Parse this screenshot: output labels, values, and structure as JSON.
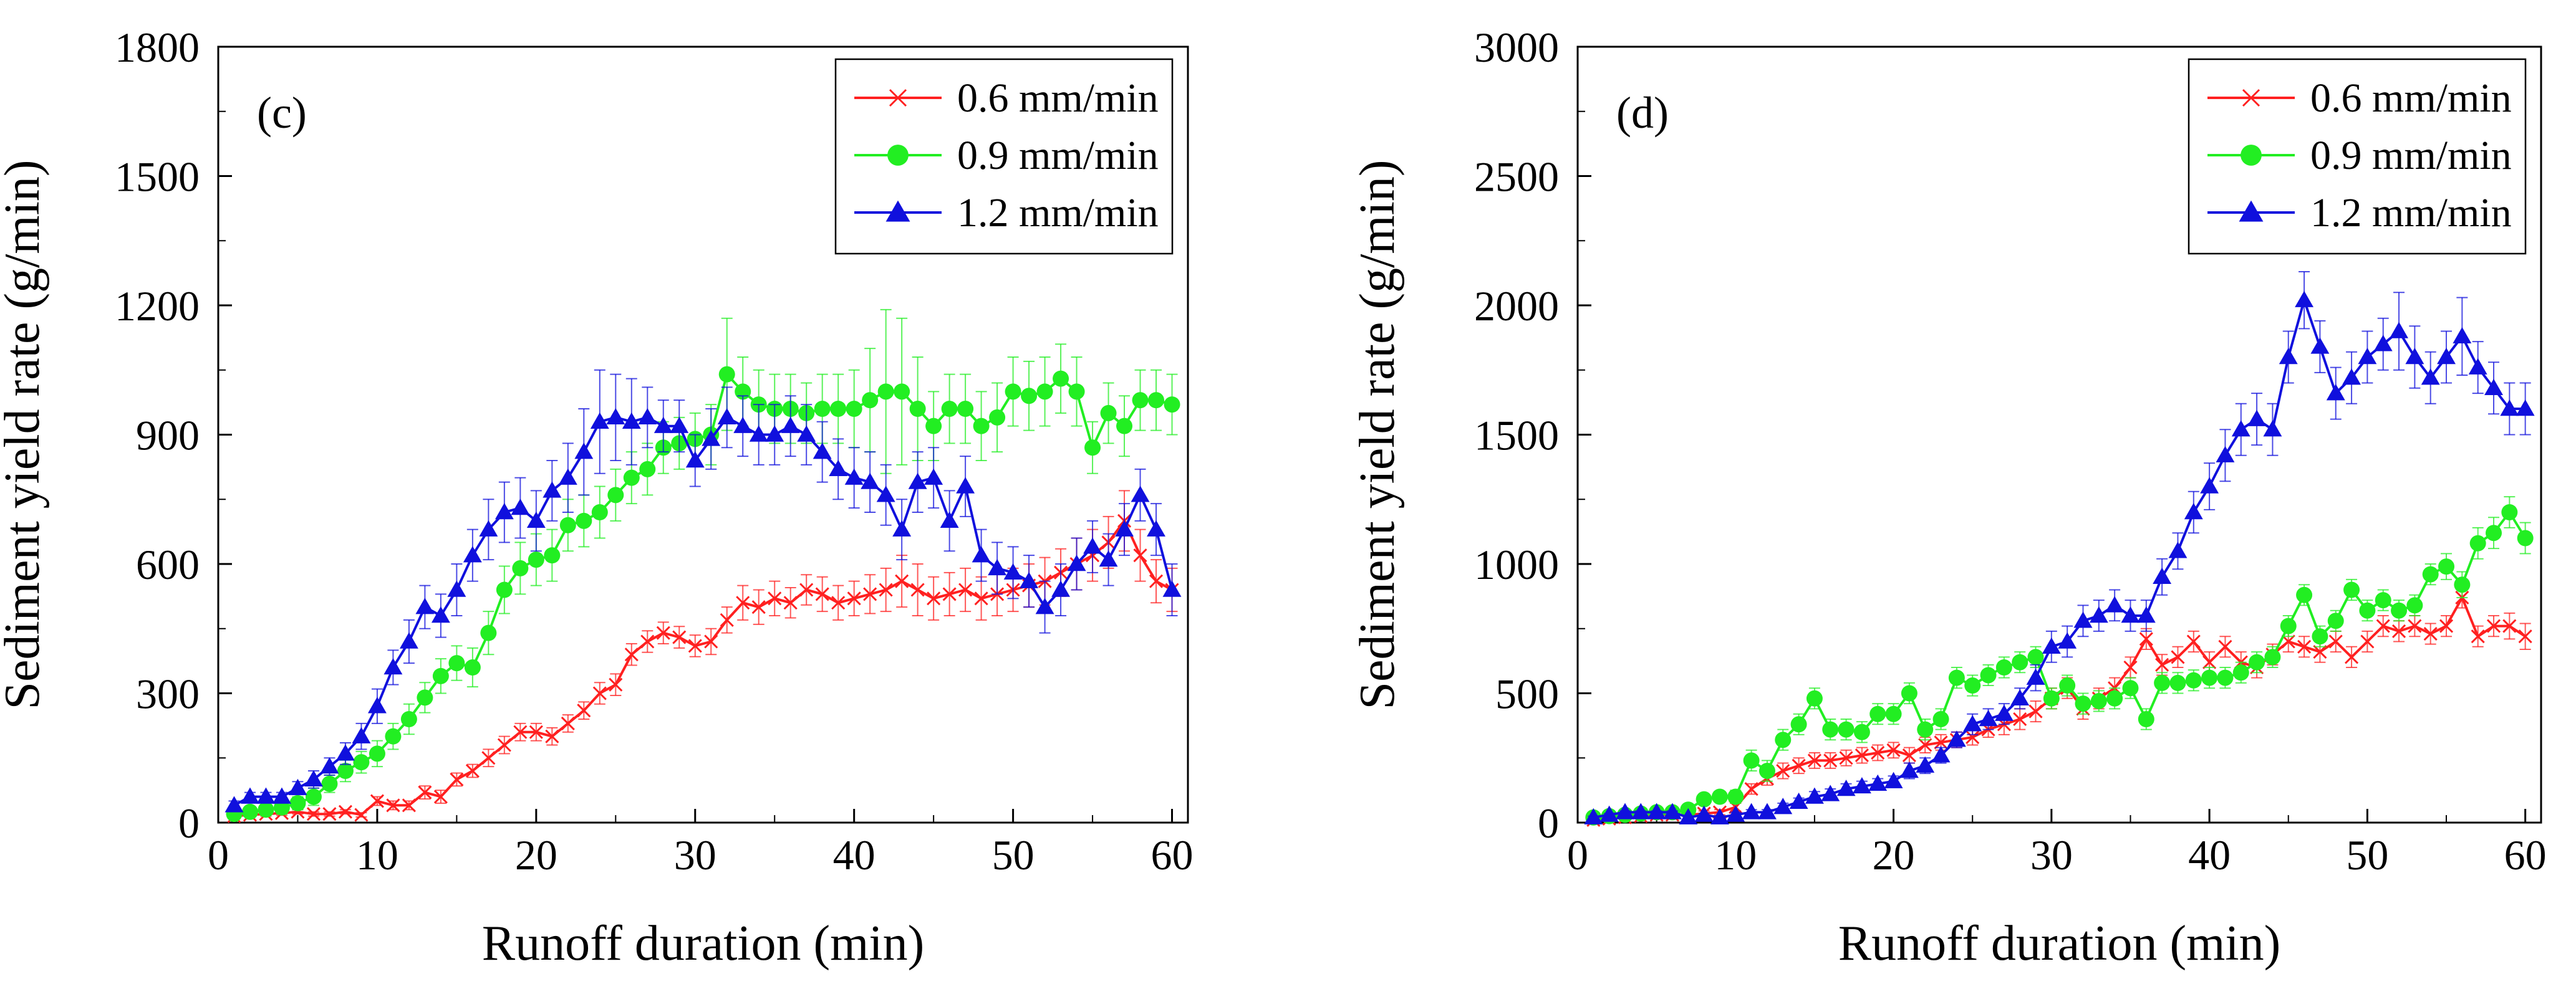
{
  "chart_data": [
    {
      "type": "line",
      "panel_label": "(c)",
      "xlabel": "Runoff duration (min)",
      "ylabel": "Sediment yield rate (g/min)",
      "xlim": [
        0,
        61
      ],
      "ylim": [
        0,
        1800
      ],
      "xticks": [
        0,
        10,
        20,
        30,
        40,
        50,
        60
      ],
      "yticks": [
        0,
        300,
        600,
        900,
        1200,
        1500,
        1800
      ],
      "legend_position": "top-right",
      "x": [
        1,
        2,
        3,
        4,
        5,
        6,
        7,
        8,
        9,
        10,
        11,
        12,
        13,
        14,
        15,
        16,
        17,
        18,
        19,
        20,
        21,
        22,
        23,
        24,
        25,
        26,
        27,
        28,
        29,
        30,
        31,
        32,
        33,
        34,
        35,
        36,
        37,
        38,
        39,
        40,
        41,
        42,
        43,
        44,
        45,
        46,
        47,
        48,
        49,
        50,
        51,
        52,
        53,
        54,
        55,
        56,
        57,
        58,
        59,
        60
      ],
      "series": [
        {
          "name": "0.6 mm/min",
          "color": "#ff2020",
          "marker": "x",
          "values": [
            15,
            18,
            20,
            22,
            25,
            20,
            20,
            25,
            18,
            50,
            40,
            40,
            70,
            60,
            100,
            120,
            150,
            180,
            210,
            210,
            200,
            230,
            260,
            300,
            320,
            390,
            420,
            440,
            430,
            410,
            420,
            470,
            510,
            500,
            520,
            510,
            540,
            530,
            510,
            520,
            530,
            540,
            560,
            540,
            520,
            530,
            540,
            520,
            530,
            540,
            550,
            560,
            580,
            600,
            620,
            650,
            700,
            620,
            560,
            540
          ],
          "errors": [
            5,
            5,
            5,
            5,
            5,
            5,
            5,
            5,
            5,
            10,
            10,
            10,
            15,
            15,
            15,
            15,
            20,
            20,
            20,
            20,
            20,
            20,
            20,
            25,
            25,
            25,
            25,
            25,
            25,
            25,
            30,
            30,
            40,
            40,
            40,
            35,
            35,
            40,
            40,
            40,
            45,
            50,
            60,
            60,
            50,
            50,
            50,
            50,
            50,
            50,
            50,
            55,
            55,
            60,
            60,
            60,
            70,
            60,
            50,
            50
          ]
        },
        {
          "name": "0.9 mm/min",
          "color": "#22ee22",
          "marker": "circle",
          "values": [
            20,
            25,
            30,
            35,
            45,
            60,
            90,
            120,
            140,
            160,
            200,
            240,
            290,
            340,
            370,
            360,
            440,
            540,
            590,
            610,
            620,
            690,
            700,
            720,
            760,
            800,
            820,
            870,
            880,
            890,
            900,
            1040,
            1000,
            970,
            960,
            960,
            950,
            960,
            960,
            960,
            980,
            1000,
            1000,
            960,
            920,
            960,
            960,
            920,
            940,
            1000,
            990,
            1000,
            1030,
            1000,
            870,
            950,
            920,
            980,
            980,
            970
          ],
          "errors": [
            10,
            10,
            10,
            15,
            15,
            20,
            20,
            25,
            25,
            30,
            30,
            35,
            35,
            40,
            40,
            45,
            50,
            55,
            60,
            60,
            60,
            60,
            60,
            60,
            60,
            60,
            60,
            60,
            60,
            60,
            70,
            130,
            80,
            80,
            80,
            80,
            70,
            80,
            80,
            90,
            120,
            190,
            170,
            120,
            80,
            80,
            80,
            80,
            80,
            80,
            80,
            80,
            80,
            80,
            60,
            70,
            70,
            70,
            70,
            70
          ]
        },
        {
          "name": "1.2 mm/min",
          "color": "#1010dd",
          "marker": "triangle",
          "values": [
            40,
            60,
            60,
            60,
            80,
            100,
            130,
            160,
            200,
            270,
            360,
            420,
            500,
            480,
            540,
            620,
            680,
            720,
            730,
            700,
            770,
            800,
            860,
            930,
            940,
            930,
            940,
            920,
            920,
            840,
            890,
            940,
            920,
            900,
            900,
            920,
            900,
            860,
            820,
            800,
            790,
            760,
            680,
            790,
            800,
            700,
            780,
            620,
            590,
            580,
            560,
            500,
            540,
            600,
            640,
            610,
            680,
            760,
            680,
            540
          ],
          "errors": [
            10,
            10,
            10,
            10,
            15,
            20,
            20,
            25,
            30,
            40,
            40,
            50,
            50,
            50,
            60,
            60,
            70,
            70,
            70,
            70,
            70,
            80,
            100,
            120,
            100,
            100,
            70,
            60,
            60,
            60,
            70,
            70,
            70,
            70,
            70,
            70,
            70,
            70,
            70,
            70,
            70,
            70,
            70,
            70,
            70,
            70,
            70,
            60,
            60,
            60,
            60,
            60,
            60,
            60,
            60,
            60,
            60,
            60,
            60,
            60
          ]
        }
      ]
    },
    {
      "type": "line",
      "panel_label": "(d)",
      "xlabel": "Runoff duration (min)",
      "ylabel": "Sediment yield rate (g/min)",
      "xlim": [
        0,
        61
      ],
      "ylim": [
        0,
        3000
      ],
      "xticks": [
        0,
        10,
        20,
        30,
        40,
        50,
        60
      ],
      "yticks": [
        0,
        500,
        1000,
        1500,
        2000,
        2500,
        3000
      ],
      "legend_position": "top-right",
      "x": [
        1,
        2,
        3,
        4,
        5,
        6,
        7,
        8,
        9,
        10,
        11,
        12,
        13,
        14,
        15,
        16,
        17,
        18,
        19,
        20,
        21,
        22,
        23,
        24,
        25,
        26,
        27,
        28,
        29,
        30,
        31,
        32,
        33,
        34,
        35,
        36,
        37,
        38,
        39,
        40,
        41,
        42,
        43,
        44,
        45,
        46,
        47,
        48,
        49,
        50,
        51,
        52,
        53,
        54,
        55,
        56,
        57,
        58,
        59,
        60
      ],
      "series": [
        {
          "name": "0.6 mm/min",
          "color": "#ff2020",
          "marker": "x",
          "values": [
            10,
            15,
            20,
            25,
            30,
            30,
            30,
            35,
            40,
            60,
            130,
            170,
            200,
            220,
            240,
            240,
            250,
            260,
            270,
            280,
            260,
            300,
            310,
            320,
            330,
            360,
            380,
            400,
            430,
            480,
            520,
            440,
            480,
            520,
            600,
            710,
            610,
            640,
            700,
            620,
            680,
            620,
            600,
            650,
            700,
            680,
            660,
            700,
            640,
            700,
            760,
            740,
            760,
            730,
            760,
            870,
            720,
            760,
            760,
            720
          ],
          "errors": [
            5,
            5,
            5,
            5,
            5,
            5,
            5,
            10,
            10,
            15,
            20,
            25,
            30,
            30,
            30,
            30,
            30,
            30,
            30,
            30,
            30,
            30,
            30,
            30,
            30,
            30,
            40,
            40,
            40,
            40,
            40,
            40,
            40,
            40,
            40,
            40,
            40,
            40,
            40,
            40,
            40,
            40,
            40,
            40,
            40,
            40,
            40,
            40,
            40,
            40,
            40,
            40,
            40,
            40,
            40,
            40,
            40,
            40,
            50,
            50
          ]
        },
        {
          "name": "0.9 mm/min",
          "color": "#22ee22",
          "marker": "circle",
          "values": [
            20,
            25,
            30,
            35,
            40,
            40,
            50,
            90,
            100,
            100,
            240,
            200,
            320,
            380,
            480,
            360,
            360,
            350,
            420,
            420,
            500,
            360,
            400,
            560,
            530,
            570,
            600,
            620,
            640,
            480,
            530,
            460,
            470,
            480,
            520,
            400,
            540,
            540,
            550,
            560,
            560,
            580,
            620,
            640,
            760,
            880,
            720,
            780,
            900,
            820,
            860,
            820,
            840,
            960,
            990,
            920,
            1080,
            1120,
            1200,
            1100
          ],
          "errors": [
            5,
            5,
            5,
            5,
            10,
            10,
            15,
            20,
            20,
            25,
            40,
            40,
            40,
            40,
            40,
            40,
            40,
            40,
            40,
            40,
            40,
            40,
            40,
            40,
            40,
            40,
            40,
            40,
            40,
            40,
            40,
            40,
            40,
            40,
            40,
            40,
            40,
            40,
            40,
            40,
            40,
            40,
            40,
            40,
            40,
            40,
            40,
            40,
            40,
            40,
            40,
            40,
            40,
            40,
            50,
            50,
            60,
            60,
            60,
            60
          ]
        },
        {
          "name": "1.2 mm/min",
          "color": "#1010dd",
          "marker": "triangle",
          "values": [
            20,
            30,
            40,
            40,
            40,
            40,
            20,
            30,
            20,
            30,
            40,
            40,
            60,
            80,
            100,
            110,
            130,
            140,
            150,
            160,
            200,
            220,
            260,
            320,
            380,
            400,
            420,
            480,
            560,
            680,
            700,
            780,
            800,
            840,
            800,
            800,
            950,
            1050,
            1200,
            1300,
            1420,
            1520,
            1560,
            1520,
            1800,
            2020,
            1840,
            1660,
            1720,
            1800,
            1850,
            1900,
            1800,
            1720,
            1800,
            1880,
            1760,
            1680,
            1600,
            1600
          ],
          "errors": [
            5,
            5,
            5,
            5,
            5,
            5,
            5,
            5,
            5,
            10,
            10,
            10,
            15,
            15,
            20,
            20,
            20,
            20,
            20,
            20,
            30,
            30,
            30,
            30,
            40,
            40,
            40,
            40,
            50,
            60,
            60,
            60,
            60,
            60,
            60,
            60,
            70,
            70,
            80,
            90,
            100,
            100,
            100,
            100,
            100,
            110,
            100,
            100,
            100,
            100,
            100,
            150,
            120,
            100,
            100,
            150,
            100,
            100,
            100,
            100
          ]
        }
      ]
    }
  ]
}
